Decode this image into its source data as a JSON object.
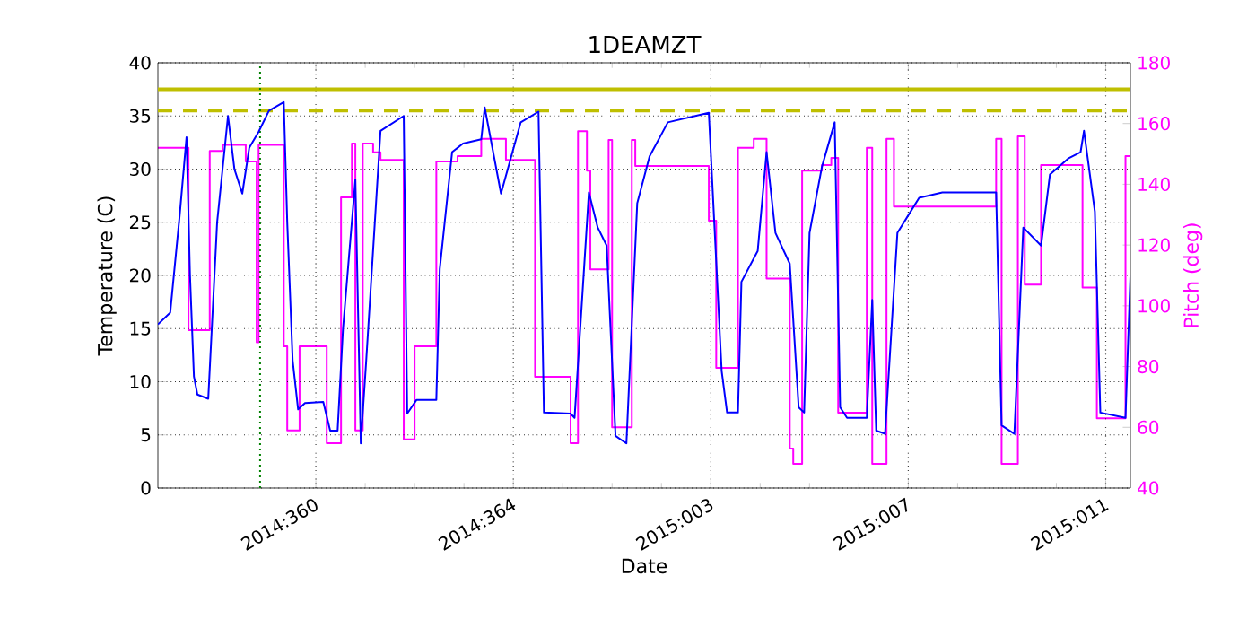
{
  "chart_data": {
    "type": "line",
    "title": "1DEAMZT",
    "xlabel": "Date",
    "ylabel": "Temperature (C)",
    "y2label": "Pitch (deg)",
    "xlim": [
      "2014-12-22T19:12",
      "2015-01-11T12:00"
    ],
    "ylim": [
      0,
      40
    ],
    "y2lim": [
      40,
      180
    ],
    "xticks": [
      {
        "value": "2014-12-26",
        "label": "2014:360"
      },
      {
        "value": "2014-12-30",
        "label": "2014:364"
      },
      {
        "value": "2015-01-03",
        "label": "2015:003"
      },
      {
        "value": "2015-01-07",
        "label": "2015:007"
      },
      {
        "value": "2015-01-11",
        "label": "2015:011"
      }
    ],
    "yticks": [
      0,
      5,
      10,
      15,
      20,
      25,
      30,
      35,
      40
    ],
    "y2ticks": [
      40,
      60,
      80,
      100,
      120,
      140,
      160,
      180
    ],
    "grid": true,
    "ref_lines": [
      {
        "axis": "y",
        "value": 37.5,
        "color": "#bfbf00",
        "line_style": "solid"
      },
      {
        "axis": "y",
        "value": 35.5,
        "color": "#bfbf00",
        "line_style": "dashed"
      },
      {
        "axis": "x",
        "value": "2014-12-24T20:53",
        "color": "#008000",
        "line_style": "dotted"
      }
    ],
    "series": [
      {
        "type": "step",
        "axis": "y2",
        "color": "#ff00ff",
        "x": [
          "2014-12-22T19:12",
          "2014-12-23T10:05",
          "2014-12-23T20:24",
          "2014-12-24T02:38",
          "2014-12-24T13:55",
          "2014-12-24T19:12",
          "2014-12-24T20:10",
          "2014-12-25T08:24",
          "2014-12-25T10:05",
          "2014-12-25T16:05",
          "2014-12-26T05:17",
          "2014-12-26T12:14",
          "2014-12-26T17:31",
          "2014-12-26T19:12",
          "2014-12-26T22:48",
          "2014-12-27T03:50",
          "2014-12-27T07:26",
          "2014-12-27T18:43",
          "2014-12-28T00:00",
          "2014-12-28T10:34",
          "2014-12-28T20:53",
          "2014-12-29T08:24",
          "2014-12-29T20:24",
          "2014-12-30T10:34",
          "2014-12-31T03:50",
          "2014-12-31T07:26",
          "2014-12-31T11:46",
          "2014-12-31T13:26",
          "2014-12-31T22:19",
          "2015-01-01T00:00",
          "2015-01-01T09:36",
          "2015-01-01T11:17",
          "2015-01-02T23:02",
          "2015-01-03T02:38",
          "2015-01-03T13:12",
          "2015-01-03T20:53",
          "2015-01-04T03:07",
          "2015-01-04T14:24",
          "2015-01-04T16:05",
          "2015-01-04T20:24",
          "2015-01-05T06:00",
          "2015-01-05T10:34",
          "2015-01-05T13:55",
          "2015-01-06T03:50",
          "2015-01-06T06:29",
          "2015-01-06T13:26",
          "2015-01-06T17:02",
          "2015-01-08T18:43",
          "2015-01-08T21:22",
          "2015-01-09T05:17",
          "2015-01-09T08:38",
          "2015-01-09T16:34",
          "2015-01-10T12:43",
          "2015-01-10T19:41",
          "2015-01-11T09:36",
          "2015-01-11T12:00"
        ],
        "values": [
          152,
          92,
          151,
          153,
          147.5,
          88,
          153,
          86.7,
          59,
          86.7,
          54.8,
          135.7,
          153.4,
          59,
          153.4,
          150.5,
          148,
          56,
          86.7,
          147.5,
          149.3,
          155,
          148,
          76.6,
          54.8,
          157.5,
          144.5,
          112,
          154.6,
          60,
          154.6,
          146,
          128,
          79.6,
          152,
          155,
          109,
          53,
          48,
          144.5,
          146.3,
          148.7,
          64.8,
          152,
          48,
          155,
          132.7,
          155,
          48,
          155.8,
          107,
          146.3,
          106,
          63,
          149.3,
          149.3
        ]
      },
      {
        "color": "#0000ff",
        "x": [
          "2014-12-22T19:12",
          "2014-12-23T01:12",
          "2014-12-23T05:46",
          "2014-12-23T09:07",
          "2014-12-23T10:48",
          "2014-12-23T12:43",
          "2014-12-23T14:24",
          "2014-12-23T19:41",
          "2014-12-24T00:00",
          "2014-12-24T05:17",
          "2014-12-24T08:24",
          "2014-12-24T12:14",
          "2014-12-24T15:36",
          "2014-12-24T20:10",
          "2014-12-25T01:12",
          "2014-12-25T08:24",
          "2014-12-25T10:05",
          "2014-12-25T12:43",
          "2014-12-25T15:22",
          "2014-12-25T18:43",
          "2014-12-26T03:36",
          "2014-12-26T06:58",
          "2014-12-26T10:34",
          "2014-12-26T13:12",
          "2014-12-26T19:12",
          "2014-12-26T21:50",
          "2014-12-27T00:29",
          "2014-12-27T07:26",
          "2014-12-27T18:43",
          "2014-12-27T20:24",
          "2014-12-28T00:58",
          "2014-12-28T10:34",
          "2014-12-28T12:14",
          "2014-12-28T18:14",
          "2014-12-28T23:31",
          "2014-12-29T08:24",
          "2014-12-29T10:05",
          "2014-12-29T18:00",
          "2014-12-30T03:36",
          "2014-12-30T12:14",
          "2014-12-30T14:53",
          "2014-12-31T03:50",
          "2014-12-31T05:46",
          "2014-12-31T12:43",
          "2014-12-31T17:02",
          "2014-12-31T21:22",
          "2015-01-01T01:41",
          "2015-01-01T06:58",
          "2015-01-01T12:14",
          "2015-01-01T18:14",
          "2015-01-02T03:07",
          "2015-01-02T23:02",
          "2015-01-03T05:17",
          "2015-01-03T07:55",
          "2015-01-03T13:12",
          "2015-01-03T14:53",
          "2015-01-03T22:48",
          "2015-01-04T03:07",
          "2015-01-04T07:26",
          "2015-01-04T14:24",
          "2015-01-04T18:43",
          "2015-01-04T21:22",
          "2015-01-05T00:00",
          "2015-01-05T06:00",
          "2015-01-05T12:14",
          "2015-01-05T14:53",
          "2015-01-05T18:14",
          "2015-01-06T03:50",
          "2015-01-06T06:29",
          "2015-01-06T08:24",
          "2015-01-06T12:43",
          "2015-01-06T18:43",
          "2015-01-07T05:17",
          "2015-01-07T16:34",
          "2015-01-08T18:43",
          "2015-01-08T21:22",
          "2015-01-09T03:36",
          "2015-01-09T07:55",
          "2015-01-09T16:34",
          "2015-01-09T20:53",
          "2015-01-10T05:46",
          "2015-01-10T11:46",
          "2015-01-10T13:26",
          "2015-01-10T18:43",
          "2015-01-10T21:22",
          "2015-01-11T09:36",
          "2015-01-11T12:00"
        ],
        "values": [
          15.4,
          16.5,
          25.6,
          33,
          20,
          10.5,
          8.8,
          8.4,
          25,
          35,
          30,
          27.7,
          32,
          33.5,
          35.5,
          36.3,
          25,
          12,
          7.4,
          8.0,
          8.1,
          5.4,
          5.4,
          15,
          29,
          4.2,
          12,
          33.6,
          35,
          7.0,
          8.3,
          8.3,
          20.6,
          31.6,
          32.4,
          32.8,
          35.8,
          27.7,
          34.4,
          35.4,
          7.1,
          7.0,
          6.6,
          27.8,
          24.5,
          22.8,
          4.9,
          4.2,
          26.8,
          31.2,
          34.4,
          35.3,
          11,
          7.1,
          7.1,
          19.4,
          22.3,
          31.6,
          24,
          21.1,
          7.6,
          7.1,
          24,
          30.2,
          34.4,
          7.6,
          6.6,
          6.6,
          17.7,
          5.4,
          5.1,
          24,
          27.3,
          27.8,
          27.8,
          5.9,
          5.1,
          24.5,
          22.8,
          29.5,
          31,
          31.6,
          33.6,
          26,
          7.1,
          6.6,
          20
        ]
      }
    ]
  }
}
